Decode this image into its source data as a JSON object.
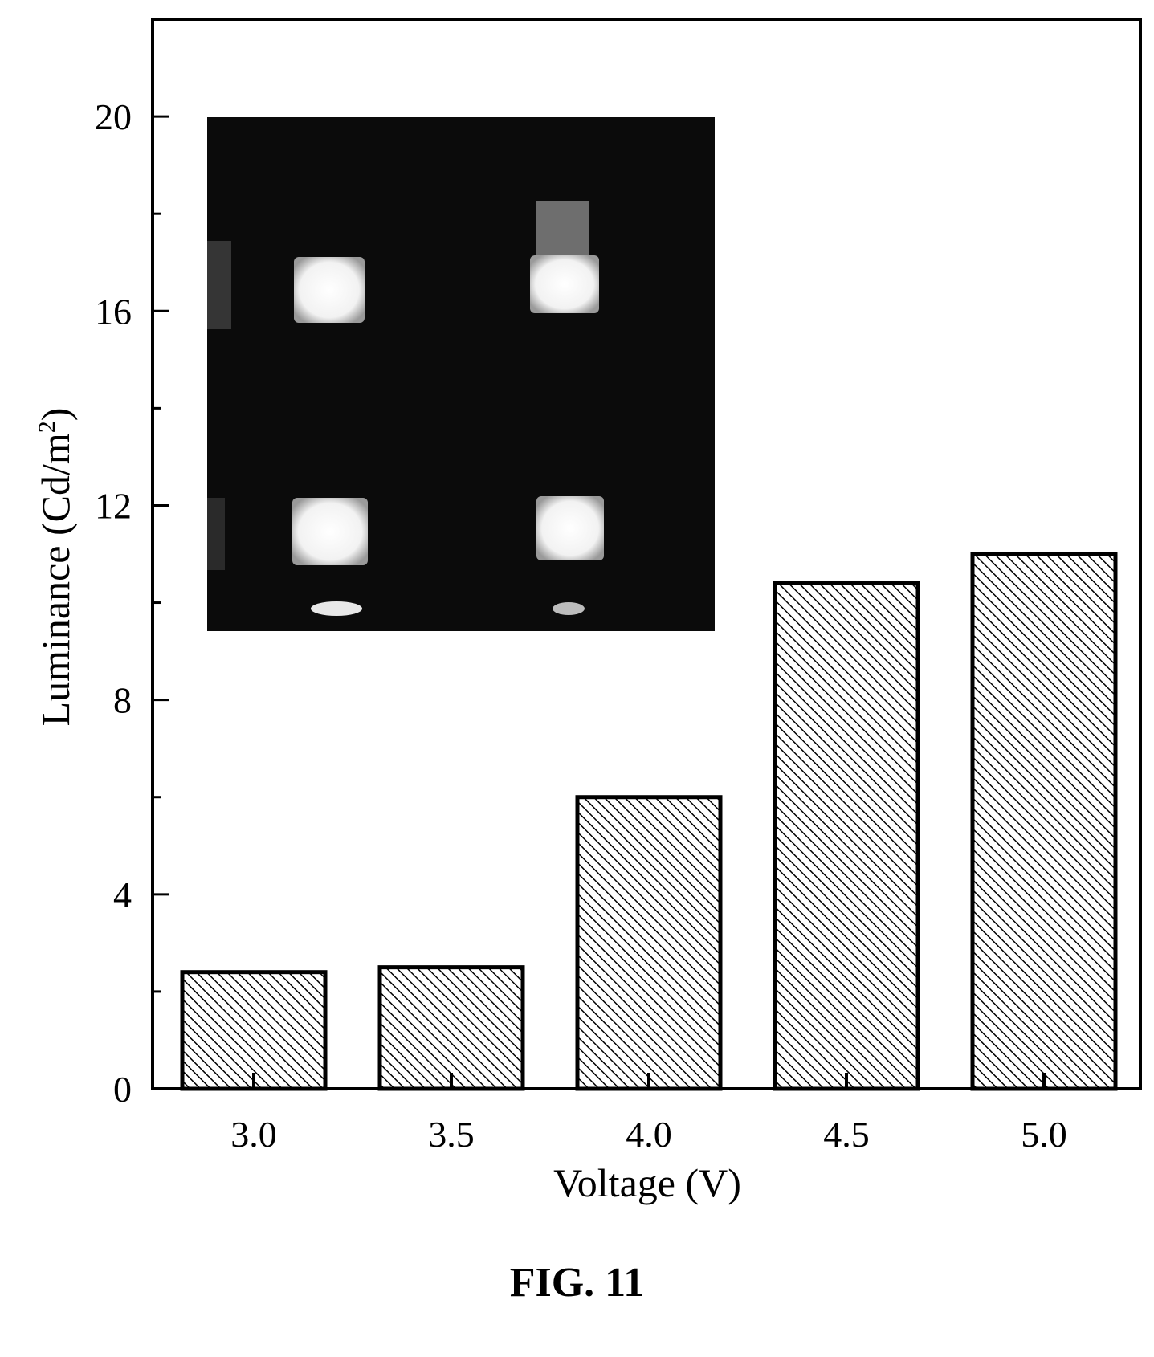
{
  "figure_caption": "FIG. 11",
  "inset": {
    "description_icon": "electroluminescence-photo-icon"
  },
  "chart_data": {
    "type": "bar",
    "title": "",
    "xlabel": "Voltage (V)",
    "ylabel_main": "Luminance (Cd/m",
    "ylabel_sup": "2",
    "ylabel_tail": ")",
    "categories": [
      "3.0",
      "3.5",
      "4.0",
      "4.5",
      "5.0"
    ],
    "values": [
      2.4,
      2.5,
      6.0,
      10.4,
      11.0
    ],
    "ylim": [
      0,
      22
    ],
    "yticks": [
      "0",
      "4",
      "8",
      "12",
      "16",
      "20"
    ],
    "ytick_values": [
      0,
      4,
      8,
      12,
      16,
      20
    ],
    "yminor_values": [
      2,
      6,
      10,
      14,
      18
    ],
    "bar_pattern": "diagonal-hatch",
    "grid": false,
    "legend": "none"
  }
}
